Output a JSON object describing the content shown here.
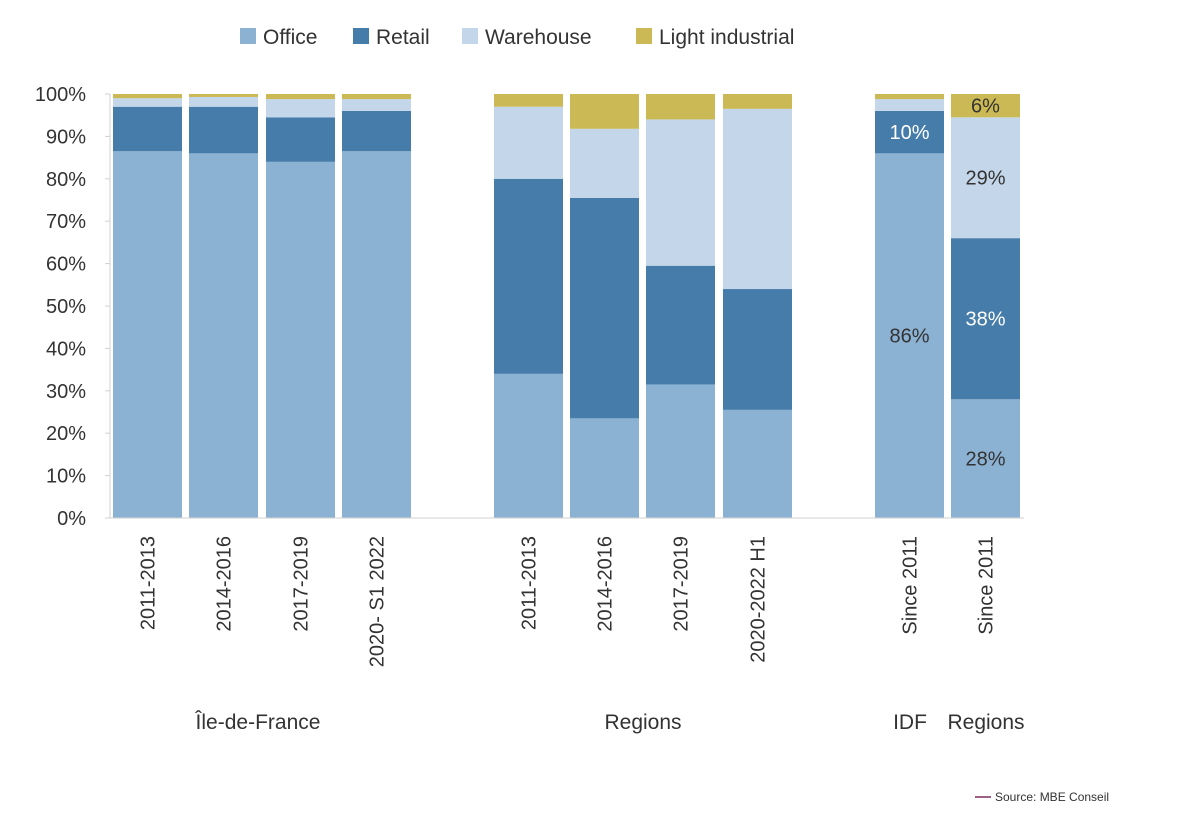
{
  "chart_data": {
    "type": "bar",
    "stacked": true,
    "legend_position": "top-center",
    "grid": false,
    "ylim": [
      0,
      100
    ],
    "y_ticks": [
      "0%",
      "10%",
      "20%",
      "30%",
      "40%",
      "50%",
      "60%",
      "70%",
      "80%",
      "90%",
      "100%"
    ],
    "legend": [
      "Office",
      "Retail",
      "Warehouse",
      "Light industrial"
    ],
    "colors": [
      "#8BB1D3",
      "#457CAA",
      "#C4D6EA",
      "#CBB955"
    ],
    "categories": [
      "2011-2013",
      "2014-2016",
      "2017-2019",
      "2020- S1 2022",
      "2011-2013",
      "2014-2016",
      "2017-2019",
      "2020-2022 H1",
      "Since 2011",
      "Since 2011"
    ],
    "groups": [
      {
        "label": "Île-de-France",
        "start": 0,
        "end": 3
      },
      {
        "label": "Regions",
        "start": 4,
        "end": 7
      },
      {
        "label": "IDF",
        "start": 8,
        "end": 8
      },
      {
        "label": "Regions",
        "start": 9,
        "end": 9
      }
    ],
    "series": [
      {
        "name": "Office",
        "values": [
          86.5,
          86,
          84,
          86.5,
          34,
          23.5,
          31.5,
          25.5,
          86,
          28
        ]
      },
      {
        "name": "Retail",
        "values": [
          10.5,
          11,
          10.5,
          9.5,
          46,
          52,
          28,
          28.5,
          10,
          38
        ]
      },
      {
        "name": "Warehouse",
        "values": [
          2,
          2.3,
          4.3,
          2.8,
          17,
          16.3,
          34.5,
          42.5,
          2.8,
          28.5
        ]
      },
      {
        "name": "Light industrial",
        "values": [
          1,
          0.7,
          1.2,
          1.2,
          3,
          8.2,
          6,
          3.5,
          1.2,
          5.5
        ]
      }
    ],
    "data_labels": [
      {
        "bar": 8,
        "series": 0,
        "text": "86%",
        "color": "#333333"
      },
      {
        "bar": 8,
        "series": 1,
        "text": "10%",
        "color": "#ffffff"
      },
      {
        "bar": 9,
        "series": 0,
        "text": "28%",
        "color": "#333333"
      },
      {
        "bar": 9,
        "series": 1,
        "text": "38%",
        "color": "#ffffff"
      },
      {
        "bar": 9,
        "series": 2,
        "text": "29%",
        "color": "#333333"
      },
      {
        "bar": 9,
        "series": 3,
        "text": "6%",
        "color": "#333333"
      }
    ],
    "source": "Source: MBE Conseil",
    "source_line_color": "#7A2C5C"
  }
}
